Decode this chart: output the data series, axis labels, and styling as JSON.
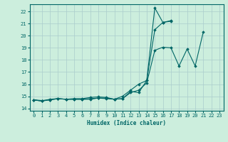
{
  "title": "",
  "xlabel": "Humidex (Indice chaleur)",
  "bg_color": "#cceedd",
  "grid_color": "#aacccc",
  "line_color": "#006666",
  "xlim": [
    -0.5,
    23.5
  ],
  "ylim": [
    13.8,
    22.6
  ],
  "xticks": [
    0,
    1,
    2,
    3,
    4,
    5,
    6,
    7,
    8,
    9,
    10,
    11,
    12,
    13,
    14,
    15,
    16,
    17,
    18,
    19,
    20,
    21,
    22,
    23
  ],
  "yticks": [
    14,
    15,
    16,
    17,
    18,
    19,
    20,
    21,
    22
  ],
  "line1_y": [
    14.7,
    14.6,
    14.7,
    14.8,
    14.75,
    14.75,
    14.75,
    14.75,
    14.85,
    14.8,
    14.75,
    14.8,
    15.3,
    15.5,
    16.1,
    18.8,
    19.05,
    19.0,
    17.5,
    18.9,
    17.5,
    20.3,
    null,
    null
  ],
  "line2_y": [
    14.7,
    14.6,
    14.75,
    14.8,
    14.75,
    14.8,
    14.8,
    14.9,
    14.95,
    14.9,
    14.75,
    15.0,
    15.5,
    16.0,
    16.3,
    20.5,
    21.1,
    21.2,
    null,
    null,
    null,
    null,
    null,
    null
  ],
  "line3_y": [
    14.7,
    14.65,
    14.7,
    14.8,
    14.75,
    14.75,
    14.75,
    14.8,
    14.85,
    14.85,
    14.75,
    14.8,
    15.4,
    15.3,
    16.3,
    22.3,
    21.1,
    21.25,
    null,
    null,
    null,
    null,
    null,
    null
  ]
}
